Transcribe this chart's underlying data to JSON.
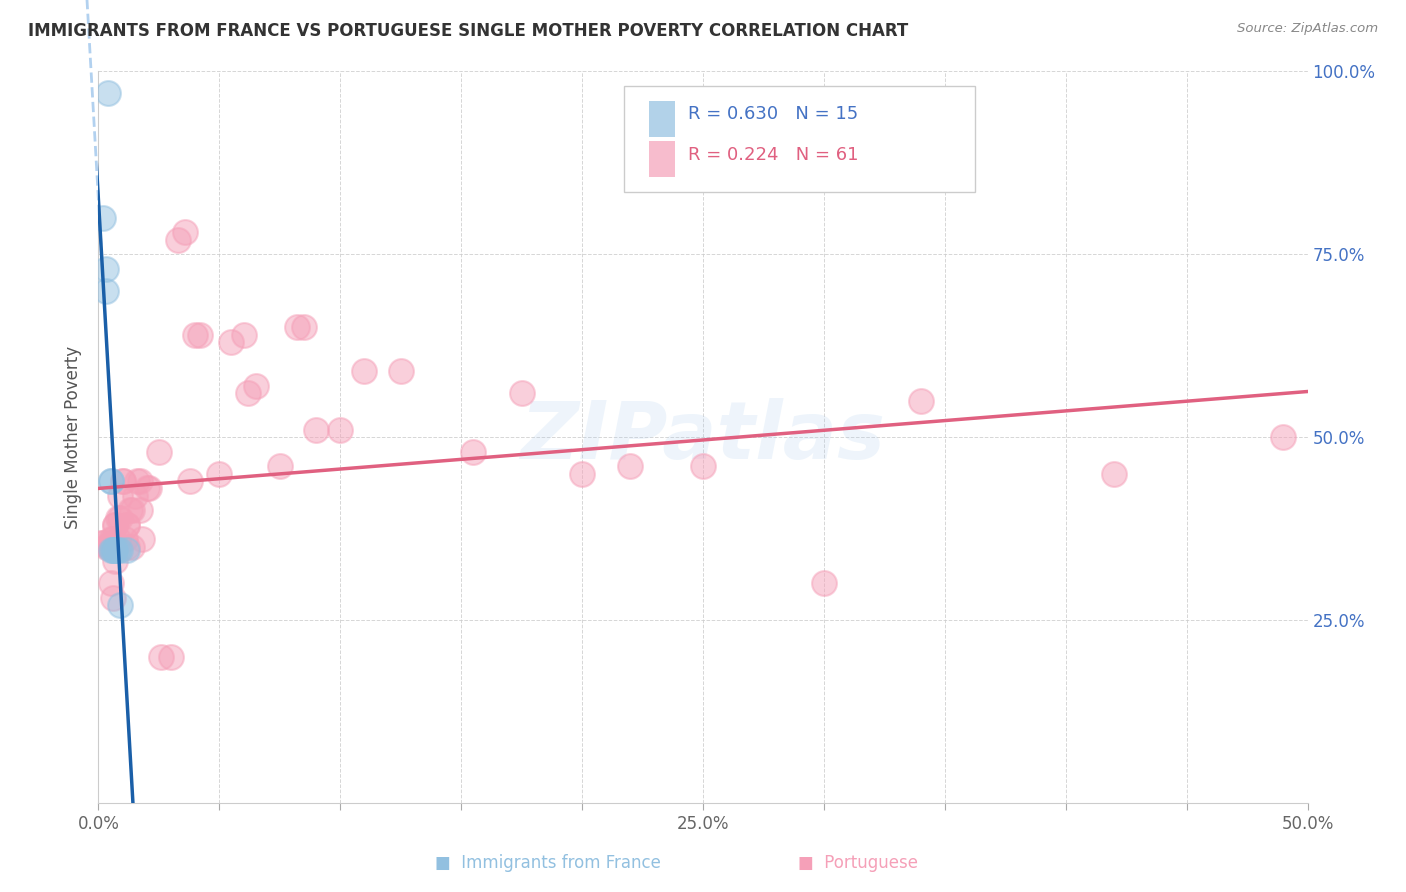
{
  "title": "IMMIGRANTS FROM FRANCE VS PORTUGUESE SINGLE MOTHER POVERTY CORRELATION CHART",
  "source": "Source: ZipAtlas.com",
  "ylabel": "Single Mother Poverty",
  "xlim": [
    0.0,
    0.5
  ],
  "ylim": [
    0.0,
    1.0
  ],
  "xtick_pos": [
    0.0,
    0.05,
    0.1,
    0.15,
    0.2,
    0.25,
    0.3,
    0.35,
    0.4,
    0.45,
    0.5
  ],
  "xtick_labels": [
    "0.0%",
    "",
    "",
    "",
    "",
    "25.0%",
    "",
    "",
    "",
    "",
    "50.0%"
  ],
  "ytick_pos": [
    0.0,
    0.25,
    0.5,
    0.75,
    1.0
  ],
  "ytick_labels_right": [
    "",
    "25.0%",
    "50.0%",
    "75.0%",
    "100.0%"
  ],
  "blue_color": "#92c0e0",
  "pink_color": "#f5a0b8",
  "blue_line_color": "#1a5fa8",
  "pink_line_color": "#e06080",
  "watermark": "ZIPatlas",
  "blue_R": "0.630",
  "blue_N": "15",
  "pink_R": "0.224",
  "pink_N": "61",
  "blue_x": [
    0.002,
    0.003,
    0.003,
    0.004,
    0.005,
    0.005,
    0.005,
    0.006,
    0.006,
    0.007,
    0.007,
    0.008,
    0.009,
    0.009,
    0.012
  ],
  "blue_y": [
    0.8,
    0.73,
    0.7,
    0.97,
    0.44,
    0.44,
    0.345,
    0.345,
    0.345,
    0.345,
    0.345,
    0.345,
    0.345,
    0.27,
    0.345
  ],
  "pink_x": [
    0.001,
    0.002,
    0.003,
    0.004,
    0.005,
    0.005,
    0.005,
    0.006,
    0.006,
    0.007,
    0.007,
    0.007,
    0.008,
    0.008,
    0.009,
    0.009,
    0.01,
    0.01,
    0.011,
    0.012,
    0.012,
    0.012,
    0.013,
    0.014,
    0.014,
    0.015,
    0.016,
    0.017,
    0.017,
    0.018,
    0.02,
    0.021,
    0.025,
    0.026,
    0.03,
    0.033,
    0.036,
    0.038,
    0.04,
    0.042,
    0.05,
    0.055,
    0.06,
    0.062,
    0.065,
    0.075,
    0.082,
    0.085,
    0.09,
    0.1,
    0.11,
    0.125,
    0.155,
    0.175,
    0.2,
    0.22,
    0.25,
    0.3,
    0.34,
    0.42,
    0.49
  ],
  "pink_y": [
    0.355,
    0.355,
    0.35,
    0.35,
    0.355,
    0.36,
    0.3,
    0.36,
    0.28,
    0.38,
    0.38,
    0.33,
    0.39,
    0.36,
    0.39,
    0.42,
    0.44,
    0.44,
    0.36,
    0.38,
    0.38,
    0.35,
    0.4,
    0.4,
    0.35,
    0.42,
    0.44,
    0.44,
    0.4,
    0.36,
    0.43,
    0.43,
    0.48,
    0.2,
    0.2,
    0.77,
    0.78,
    0.44,
    0.64,
    0.64,
    0.45,
    0.63,
    0.64,
    0.56,
    0.57,
    0.46,
    0.65,
    0.65,
    0.51,
    0.51,
    0.59,
    0.59,
    0.48,
    0.56,
    0.45,
    0.46,
    0.46,
    0.3,
    0.55,
    0.45,
    0.5
  ]
}
